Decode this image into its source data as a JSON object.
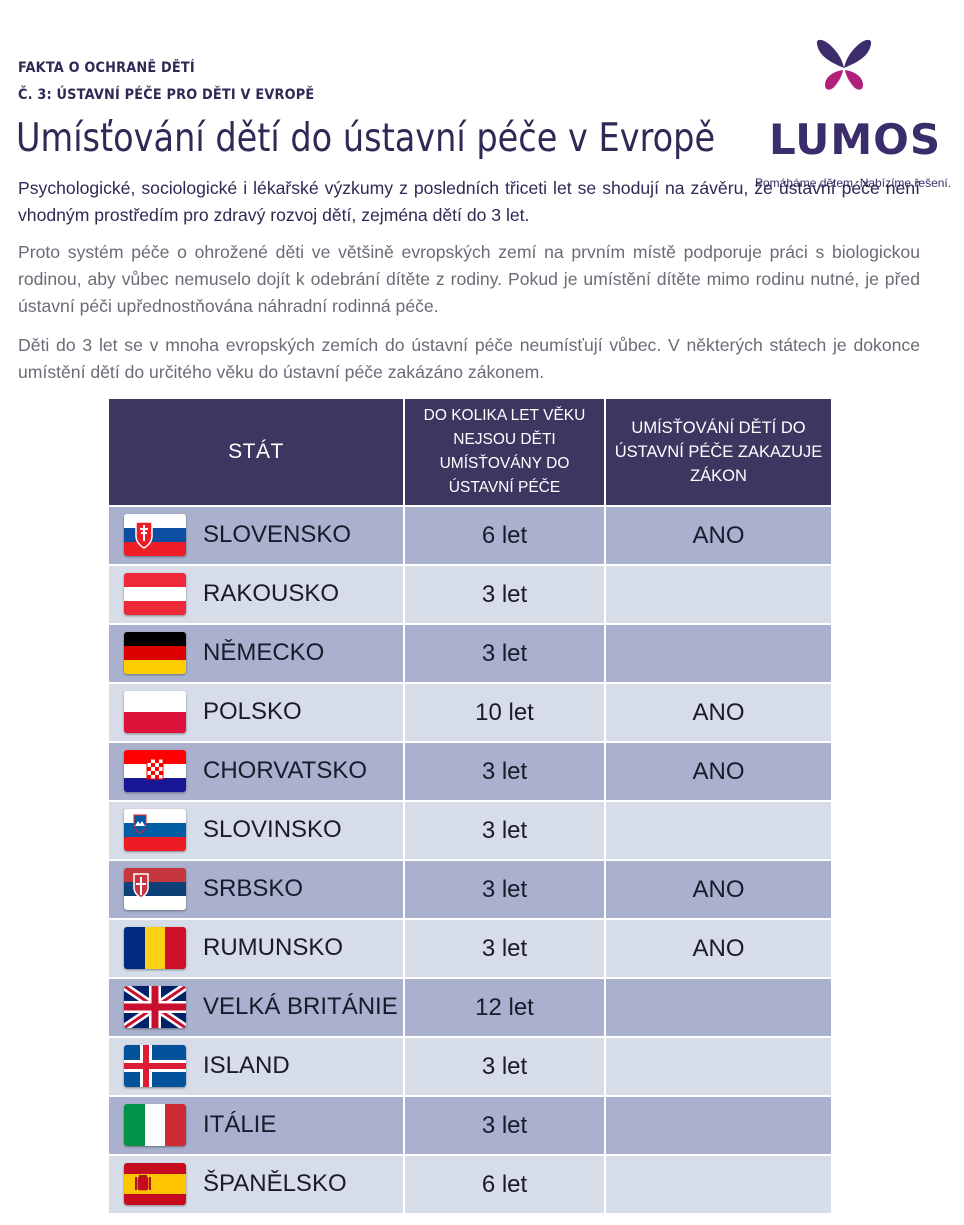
{
  "header": {
    "kicker1": "FAKTA O OCHRANĚ DĚTÍ",
    "kicker2": "Č. 3: ÚSTAVNÍ PÉČE PRO DĚTI V EVROPĚ",
    "title": "Umísťování dětí do ústavní péče v Evropě"
  },
  "logo": {
    "word": "LUMOS",
    "tagline": "Pomáháme dětem. Nabízíme řešení.",
    "colors": {
      "butterfly_dark": "#3b2d6b",
      "butterfly_pink": "#b0207a"
    }
  },
  "intro": {
    "lead": "Psychologické, sociologické i lékařské výzkumy z posledních třiceti let se shodují na závěru, že ústavní péče není vhodným prostředím pro zdravý rozvoj dětí, zejména dětí do 3 let.",
    "para1": "Proto systém péče o ohrožené děti ve většině evropských zemí na prvním místě podporuje práci s biologic­kou rodinou, aby vůbec nemuselo dojít k odebrání dítěte z rodiny. Pokud je umístění dítěte mimo rodinu nutné, je před ústavní péči upřednostňována náhradní rodinná péče.",
    "para2": "Děti do 3 let se v mnoha evropských zemích do ústavní péče neumísťují vůbec. V některých státech je do­konce umístění dětí do určitého věku do ústavní péče zakázáno zákonem."
  },
  "table": {
    "headers": {
      "country": "STÁT",
      "age": "DO KOLIKA LET VĚKU NEJSOU DĚTI UMÍSŤOVÁNY  DO ÚSTAVNÍ PÉČE",
      "law": "UMÍSŤOVÁNÍ DĚTÍ DO ÚSTAVNÍ PÉČE ZAKAZUJE ZÁKON"
    },
    "rows": [
      {
        "flag": "slovakia-flag-icon",
        "country": "SLOVENSKO",
        "age": "6 let",
        "law": "ANO"
      },
      {
        "flag": "austria-flag-icon",
        "country": "RAKOUSKO",
        "age": "3 let",
        "law": ""
      },
      {
        "flag": "germany-flag-icon",
        "country": "NĚMECKO",
        "age": "3 let",
        "law": ""
      },
      {
        "flag": "poland-flag-icon",
        "country": "POLSKO",
        "age": "10 let",
        "law": "ANO"
      },
      {
        "flag": "croatia-flag-icon",
        "country": "CHORVATSKO",
        "age": "3 let",
        "law": "ANO"
      },
      {
        "flag": "slovenia-flag-icon",
        "country": "SLOVINSKO",
        "age": "3 let",
        "law": ""
      },
      {
        "flag": "serbia-flag-icon",
        "country": "SRBSKO",
        "age": "3 let",
        "law": "ANO"
      },
      {
        "flag": "romania-flag-icon",
        "country": "RUMUNSKO",
        "age": "3 let",
        "law": "ANO"
      },
      {
        "flag": "uk-flag-icon",
        "country": "VELKÁ BRITÁNIE",
        "age": "12 let",
        "law": ""
      },
      {
        "flag": "iceland-flag-icon",
        "country": "ISLAND",
        "age": "3 let",
        "law": ""
      },
      {
        "flag": "italy-flag-icon",
        "country": "ITÁLIE",
        "age": "3 let",
        "law": ""
      },
      {
        "flag": "spain-flag-icon",
        "country": "ŠPANĚLSKO",
        "age": "6 let",
        "law": ""
      }
    ],
    "colors": {
      "header_bg": "#3b3760",
      "row_dark": "#a9b1ce",
      "row_light": "#d7dce9"
    }
  }
}
